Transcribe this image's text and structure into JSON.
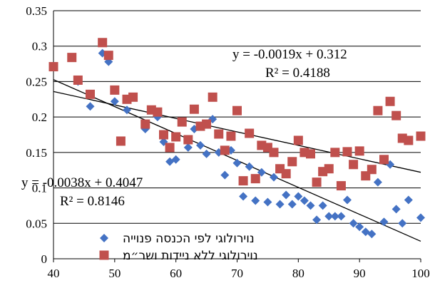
{
  "chart_data": {
    "type": "scatter",
    "xlim": [
      40,
      100
    ],
    "ylim": [
      0,
      0.35
    ],
    "x_ticks": [
      "40",
      "50",
      "60",
      "70",
      "80",
      "90",
      "100"
    ],
    "y_ticks": [
      "0",
      "0.05",
      "0.1",
      "0.15",
      "0.2",
      "0.25",
      "0.3",
      "0.35"
    ],
    "grid": "horizontal",
    "legend_position": "bottom",
    "series": [
      {
        "name": "נוירולוגי לפי הכנסה פנוייה",
        "marker": "diamond",
        "color": "#4472C4",
        "points": [
          [
            44,
            0.25
          ],
          [
            46,
            0.215
          ],
          [
            48,
            0.29
          ],
          [
            49,
            0.278
          ],
          [
            50,
            0.222
          ],
          [
            52,
            0.21
          ],
          [
            55,
            0.183
          ],
          [
            57,
            0.2
          ],
          [
            58,
            0.165
          ],
          [
            59,
            0.137
          ],
          [
            60,
            0.14
          ],
          [
            62,
            0.157
          ],
          [
            63,
            0.183
          ],
          [
            64,
            0.16
          ],
          [
            65,
            0.148
          ],
          [
            66,
            0.197
          ],
          [
            67,
            0.15
          ],
          [
            68,
            0.118
          ],
          [
            69,
            0.153
          ],
          [
            70,
            0.135
          ],
          [
            71,
            0.088
          ],
          [
            72,
            0.13
          ],
          [
            73,
            0.082
          ],
          [
            74,
            0.122
          ],
          [
            75,
            0.08
          ],
          [
            76,
            0.115
          ],
          [
            77,
            0.077
          ],
          [
            78,
            0.09
          ],
          [
            79,
            0.077
          ],
          [
            80,
            0.088
          ],
          [
            81,
            0.082
          ],
          [
            82,
            0.075
          ],
          [
            83,
            0.055
          ],
          [
            84,
            0.075
          ],
          [
            85,
            0.06
          ],
          [
            86,
            0.06
          ],
          [
            87,
            0.06
          ],
          [
            88,
            0.083
          ],
          [
            89,
            0.05
          ],
          [
            90,
            0.045
          ],
          [
            91,
            0.038
          ],
          [
            92,
            0.035
          ],
          [
            93,
            0.108
          ],
          [
            94,
            0.052
          ],
          [
            95,
            0.133
          ],
          [
            96,
            0.07
          ],
          [
            97,
            0.05
          ],
          [
            98,
            0.083
          ],
          [
            100,
            0.058
          ]
        ],
        "trendline": {
          "slope": -0.0038,
          "intercept": 0.4047,
          "equation": "y = -0.0038x + 0.4047",
          "r2": "R² = 0.8146"
        }
      },
      {
        "name": "נוירולוגי ללא ניידות ושר״מ",
        "marker": "square",
        "color": "#C0504D",
        "points": [
          [
            40,
            0.271
          ],
          [
            43,
            0.284
          ],
          [
            44,
            0.252
          ],
          [
            46,
            0.232
          ],
          [
            48,
            0.305
          ],
          [
            49,
            0.287
          ],
          [
            50,
            0.238
          ],
          [
            51,
            0.166
          ],
          [
            52,
            0.225
          ],
          [
            53,
            0.228
          ],
          [
            55,
            0.19
          ],
          [
            56,
            0.21
          ],
          [
            57,
            0.207
          ],
          [
            58,
            0.175
          ],
          [
            59,
            0.157
          ],
          [
            60,
            0.172
          ],
          [
            61,
            0.193
          ],
          [
            62,
            0.168
          ],
          [
            63,
            0.211
          ],
          [
            64,
            0.187
          ],
          [
            65,
            0.19
          ],
          [
            66,
            0.228
          ],
          [
            67,
            0.176
          ],
          [
            68,
            0.153
          ],
          [
            69,
            0.173
          ],
          [
            70,
            0.209
          ],
          [
            71,
            0.11
          ],
          [
            72,
            0.177
          ],
          [
            73,
            0.113
          ],
          [
            74,
            0.16
          ],
          [
            75,
            0.157
          ],
          [
            76,
            0.15
          ],
          [
            77,
            0.127
          ],
          [
            78,
            0.12
          ],
          [
            79,
            0.137
          ],
          [
            80,
            0.167
          ],
          [
            81,
            0.15
          ],
          [
            82,
            0.148
          ],
          [
            83,
            0.108
          ],
          [
            84,
            0.123
          ],
          [
            85,
            0.127
          ],
          [
            86,
            0.15
          ],
          [
            87,
            0.103
          ],
          [
            88,
            0.151
          ],
          [
            89,
            0.133
          ],
          [
            90,
            0.152
          ],
          [
            91,
            0.117
          ],
          [
            92,
            0.126
          ],
          [
            93,
            0.209
          ],
          [
            94,
            0.14
          ],
          [
            95,
            0.222
          ],
          [
            96,
            0.202
          ],
          [
            97,
            0.17
          ],
          [
            98,
            0.167
          ],
          [
            100,
            0.173
          ]
        ],
        "trendline": {
          "slope": -0.0019,
          "intercept": 0.312,
          "equation": "y = -0.0019x + 0.312",
          "r2": "R² = 0.4188"
        }
      }
    ]
  }
}
